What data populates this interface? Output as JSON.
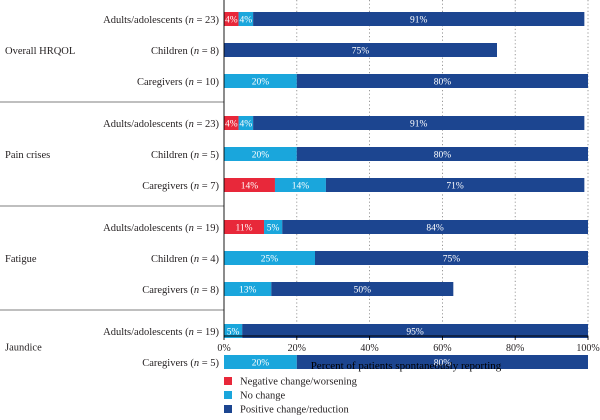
{
  "colors": {
    "negative": "#e8283a",
    "no_change": "#1aa6dc",
    "positive": "#1c4590",
    "grid": "#7f7f7f",
    "axis": "#000000",
    "text": "#231f20"
  },
  "chart_data": {
    "type": "bar",
    "orientation": "horizontal",
    "stacked": true,
    "xlabel": "Percent of patients spontaneously reporting",
    "xlim": [
      0,
      100
    ],
    "xticks": [
      0,
      20,
      40,
      60,
      80,
      100
    ],
    "xtick_labels": [
      "0%",
      "20%",
      "40%",
      "60%",
      "80%",
      "100%"
    ],
    "grid": "vertical dotted",
    "legend_position": "bottom-left",
    "series": [
      {
        "key": "negative",
        "name": "Negative change/worsening"
      },
      {
        "key": "no_change",
        "name": "No change"
      },
      {
        "key": "positive",
        "name": "Positive change/reduction"
      }
    ],
    "groups": [
      {
        "label": "Overall HRQOL",
        "rows": [
          {
            "group_label": "Adults/adolescents",
            "n_label": "(n = 23)",
            "values": [
              4,
              4,
              91
            ],
            "labels": [
              "4%",
              "4%",
              "91%"
            ]
          },
          {
            "group_label": "Children",
            "n_label": "(n = 8)",
            "values": [
              0,
              0,
              75
            ],
            "labels": [
              "",
              "",
              "75%"
            ]
          },
          {
            "group_label": "Caregivers",
            "n_label": "(n = 10)",
            "values": [
              0,
              20,
              80
            ],
            "labels": [
              "",
              "20%",
              "80%"
            ]
          }
        ]
      },
      {
        "label": "Pain crises",
        "rows": [
          {
            "group_label": "Adults/adolescents",
            "n_label": "(n = 23)",
            "values": [
              4,
              4,
              91
            ],
            "labels": [
              "4%",
              "4%",
              "91%"
            ]
          },
          {
            "group_label": "Children",
            "n_label": "(n = 5)",
            "values": [
              0,
              20,
              80
            ],
            "labels": [
              "",
              "20%",
              "80%"
            ]
          },
          {
            "group_label": "Caregivers",
            "n_label": "(n = 7)",
            "values": [
              14,
              14,
              71
            ],
            "labels": [
              "14%",
              "14%",
              "71%"
            ]
          }
        ]
      },
      {
        "label": "Fatigue",
        "rows": [
          {
            "group_label": "Adults/adolescents",
            "n_label": "(n = 19)",
            "values": [
              11,
              5,
              84
            ],
            "labels": [
              "11%",
              "5%",
              "84%"
            ]
          },
          {
            "group_label": "Children",
            "n_label": "(n = 4)",
            "values": [
              0,
              25,
              75
            ],
            "labels": [
              "",
              "25%",
              "75%"
            ]
          },
          {
            "group_label": "Caregivers",
            "n_label": "(n = 8)",
            "values": [
              0,
              13,
              50
            ],
            "labels": [
              "",
              "13%",
              "50%"
            ]
          }
        ]
      },
      {
        "label": "Jaundice",
        "rows": [
          {
            "group_label": "Adults/adolescents",
            "n_label": "(n = 19)",
            "values": [
              0,
              5,
              95
            ],
            "labels": [
              "",
              "5%",
              "95%"
            ]
          },
          {
            "group_label": "Caregivers",
            "n_label": "(n = 5)",
            "values": [
              0,
              20,
              80
            ],
            "labels": [
              "",
              "20%",
              "80%"
            ]
          }
        ]
      }
    ]
  }
}
